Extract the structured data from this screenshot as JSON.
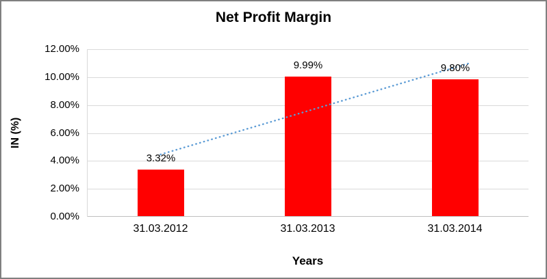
{
  "chart_data": {
    "type": "bar",
    "title": "Net Profit Margin",
    "xlabel": "Years",
    "ylabel": "IN (%)",
    "categories": [
      "31.03.2012",
      "31.03.2013",
      "31.03.2014"
    ],
    "values": [
      3.32,
      9.99,
      9.8
    ],
    "data_labels": [
      "3.32%",
      "9.99%",
      "9.80%"
    ],
    "ylim": [
      0,
      12
    ],
    "ytick_step": 2,
    "ytick_labels": [
      "0.00%",
      "2.00%",
      "4.00%",
      "6.00%",
      "8.00%",
      "10.00%",
      "12.00%"
    ],
    "grid": true,
    "legend_position": "none",
    "bar_color": "#ff0000",
    "trendline": {
      "style": "dotted",
      "color": "#5b9bd5"
    }
  }
}
